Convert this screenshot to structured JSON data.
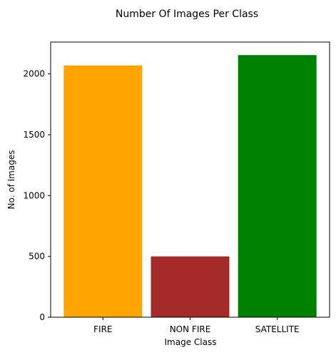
{
  "chart_data": {
    "type": "bar",
    "title": "Number Of Images Per Class",
    "xlabel": "Image Class",
    "ylabel": "No. of Images",
    "categories": [
      "FIRE",
      "NON FIRE",
      "SATELLITE"
    ],
    "values": [
      2070,
      500,
      2155
    ],
    "colors": [
      "#ffa500",
      "#a52a2a",
      "#008000"
    ],
    "ylim": [
      0,
      2262
    ],
    "yticks": [
      0,
      500,
      1000,
      1500,
      2000
    ],
    "grid": false,
    "legend": "none"
  }
}
